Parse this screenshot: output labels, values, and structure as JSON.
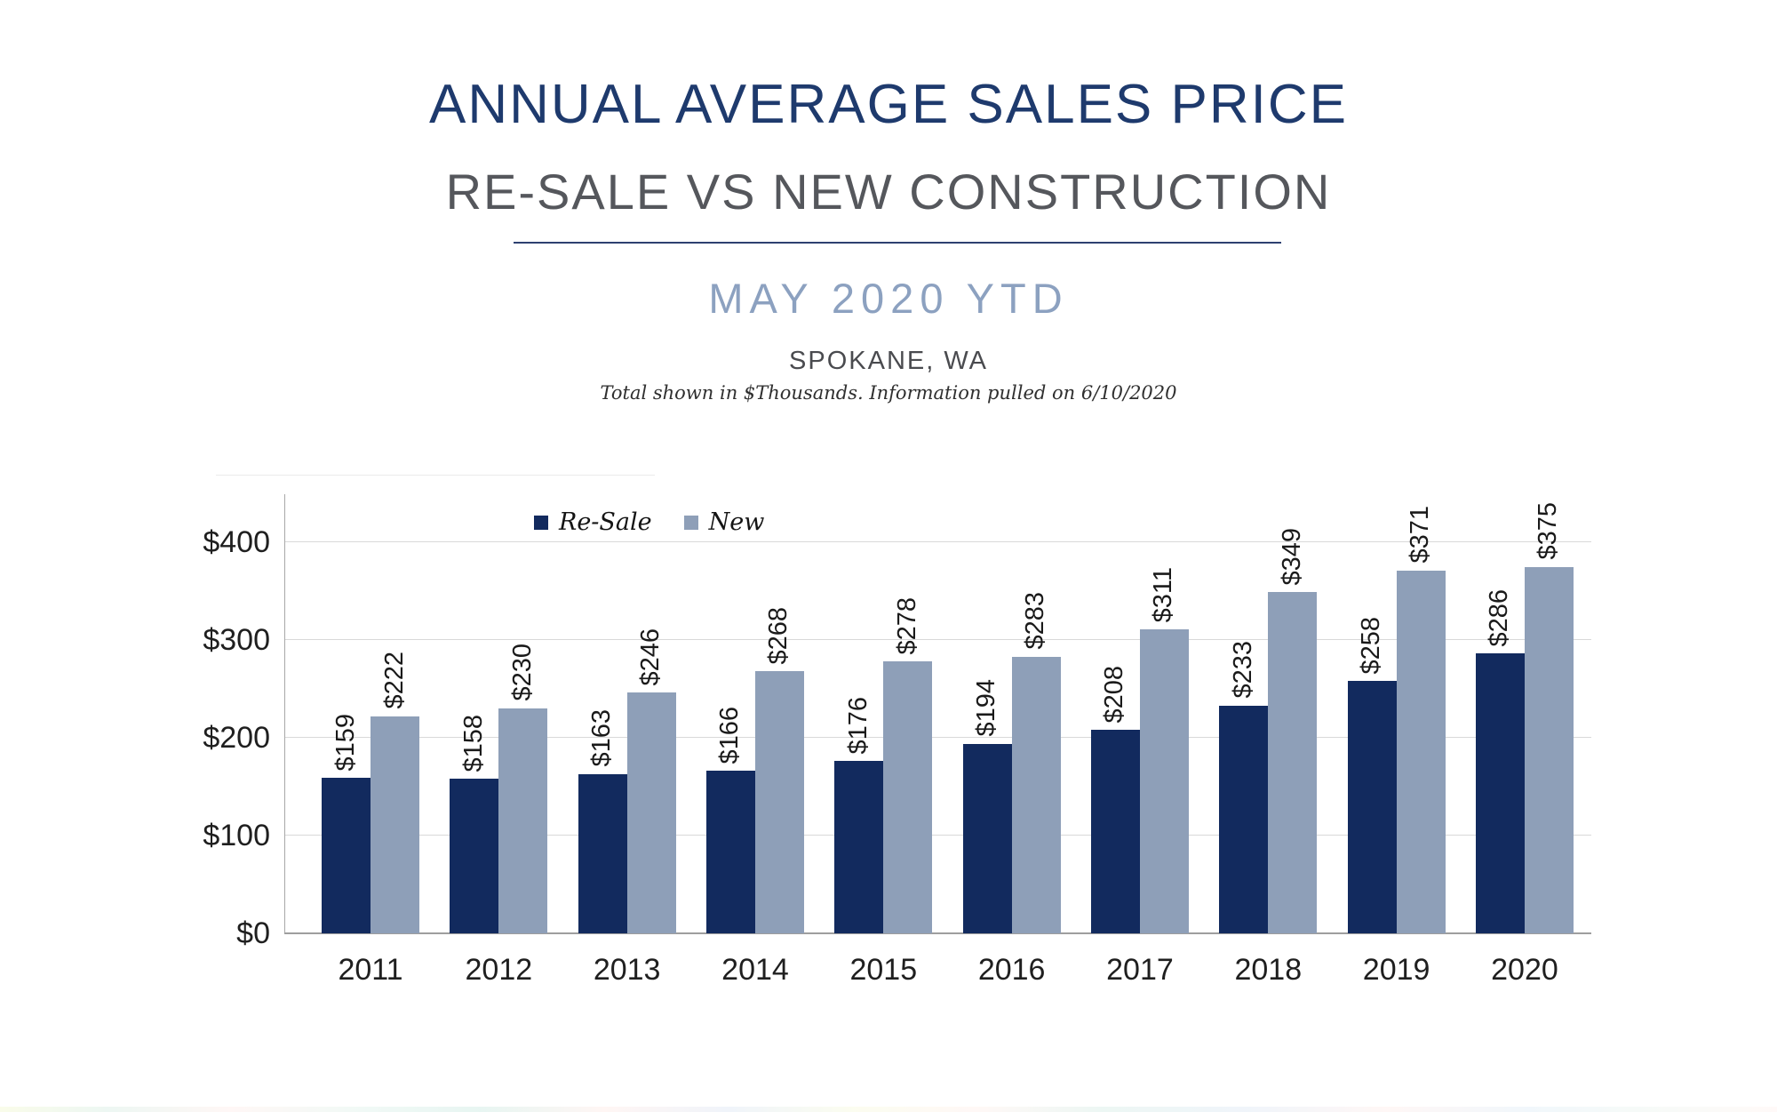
{
  "header": {
    "title": "ANNUAL AVERAGE SALES PRICE",
    "subtitle": "RE-SALE VS NEW CONSTRUCTION",
    "period": "MAY 2020 YTD",
    "location": "SPOKANE, WA",
    "note": "Total shown in $Thousands. Information pulled on 6/10/2020"
  },
  "chart_data": {
    "type": "bar",
    "title": "Annual Average Sales Price, Re-Sale vs New Construction, May 2020 YTD, Spokane WA",
    "units": "$ thousands",
    "value_prefix": "$",
    "categories": [
      "2011",
      "2012",
      "2013",
      "2014",
      "2015",
      "2016",
      "2017",
      "2018",
      "2019",
      "2020"
    ],
    "series": [
      {
        "name": "Re-Sale",
        "color": "#122A5E",
        "values": [
          159,
          158,
          163,
          166,
          176,
          194,
          208,
          233,
          258,
          286
        ]
      },
      {
        "name": "New",
        "color": "#8E9FB8",
        "values": [
          222,
          230,
          246,
          268,
          278,
          283,
          311,
          349,
          371,
          375
        ]
      }
    ],
    "y_ticks": [
      0,
      100,
      200,
      300,
      400
    ],
    "y_tick_labels": [
      "$0",
      "$100",
      "$200",
      "$300",
      "$400"
    ],
    "ylim": [
      0,
      450
    ],
    "grid": true,
    "legend_position": "top-left-inset",
    "data_labels": "rotated-90-above-bars"
  },
  "colors": {
    "title_navy": "#1E3A6D",
    "subtitle_gray": "#55575C",
    "period_blue": "#8CA1C0",
    "divider_navy": "#2D4070",
    "bar_resale": "#122A5E",
    "bar_new": "#8E9FB8",
    "gridline": "#D9D9D9",
    "axis_gray": "#A0A0A0"
  }
}
